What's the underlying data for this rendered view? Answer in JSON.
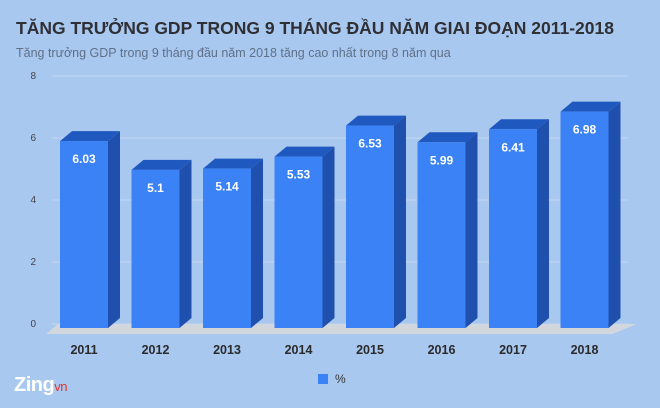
{
  "header": {
    "title": "TĂNG TRƯỞNG GDP TRONG 9 THÁNG ĐẦU NĂM GIAI ĐOẠN 2011-2018",
    "subtitle": "Tăng trưởng GDP trong 9 tháng đầu năm 2018 tăng cao nhất trong 8 năm qua"
  },
  "colors": {
    "front": "#3a82f5",
    "side": "#2050ad",
    "top": "#1f58be",
    "floor": "#d2d6dd",
    "grid": "#c3d6ef",
    "background": "#a9c8f0"
  },
  "chart_data": {
    "type": "bar",
    "title": "TĂNG TRƯỞNG GDP TRONG 9 THÁNG ĐẦU NĂM GIAI ĐOẠN 2011-2018",
    "subtitle": "Tăng trưởng GDP trong 9 tháng đầu năm 2018 tăng cao nhất trong 8 năm qua",
    "categories": [
      "2011",
      "2012",
      "2013",
      "2014",
      "2015",
      "2016",
      "2017",
      "2018"
    ],
    "series": [
      {
        "name": "%",
        "values": [
          6.03,
          5.1,
          5.14,
          5.53,
          6.53,
          5.99,
          6.41,
          6.98
        ]
      }
    ],
    "ylim": [
      0,
      8
    ],
    "yticks": [
      0,
      2,
      4,
      6,
      8
    ],
    "grid": true,
    "legend": "bottom-center",
    "xlabel": "",
    "ylabel": ""
  },
  "logo": {
    "main": "Zing",
    "suffix": "vn"
  }
}
